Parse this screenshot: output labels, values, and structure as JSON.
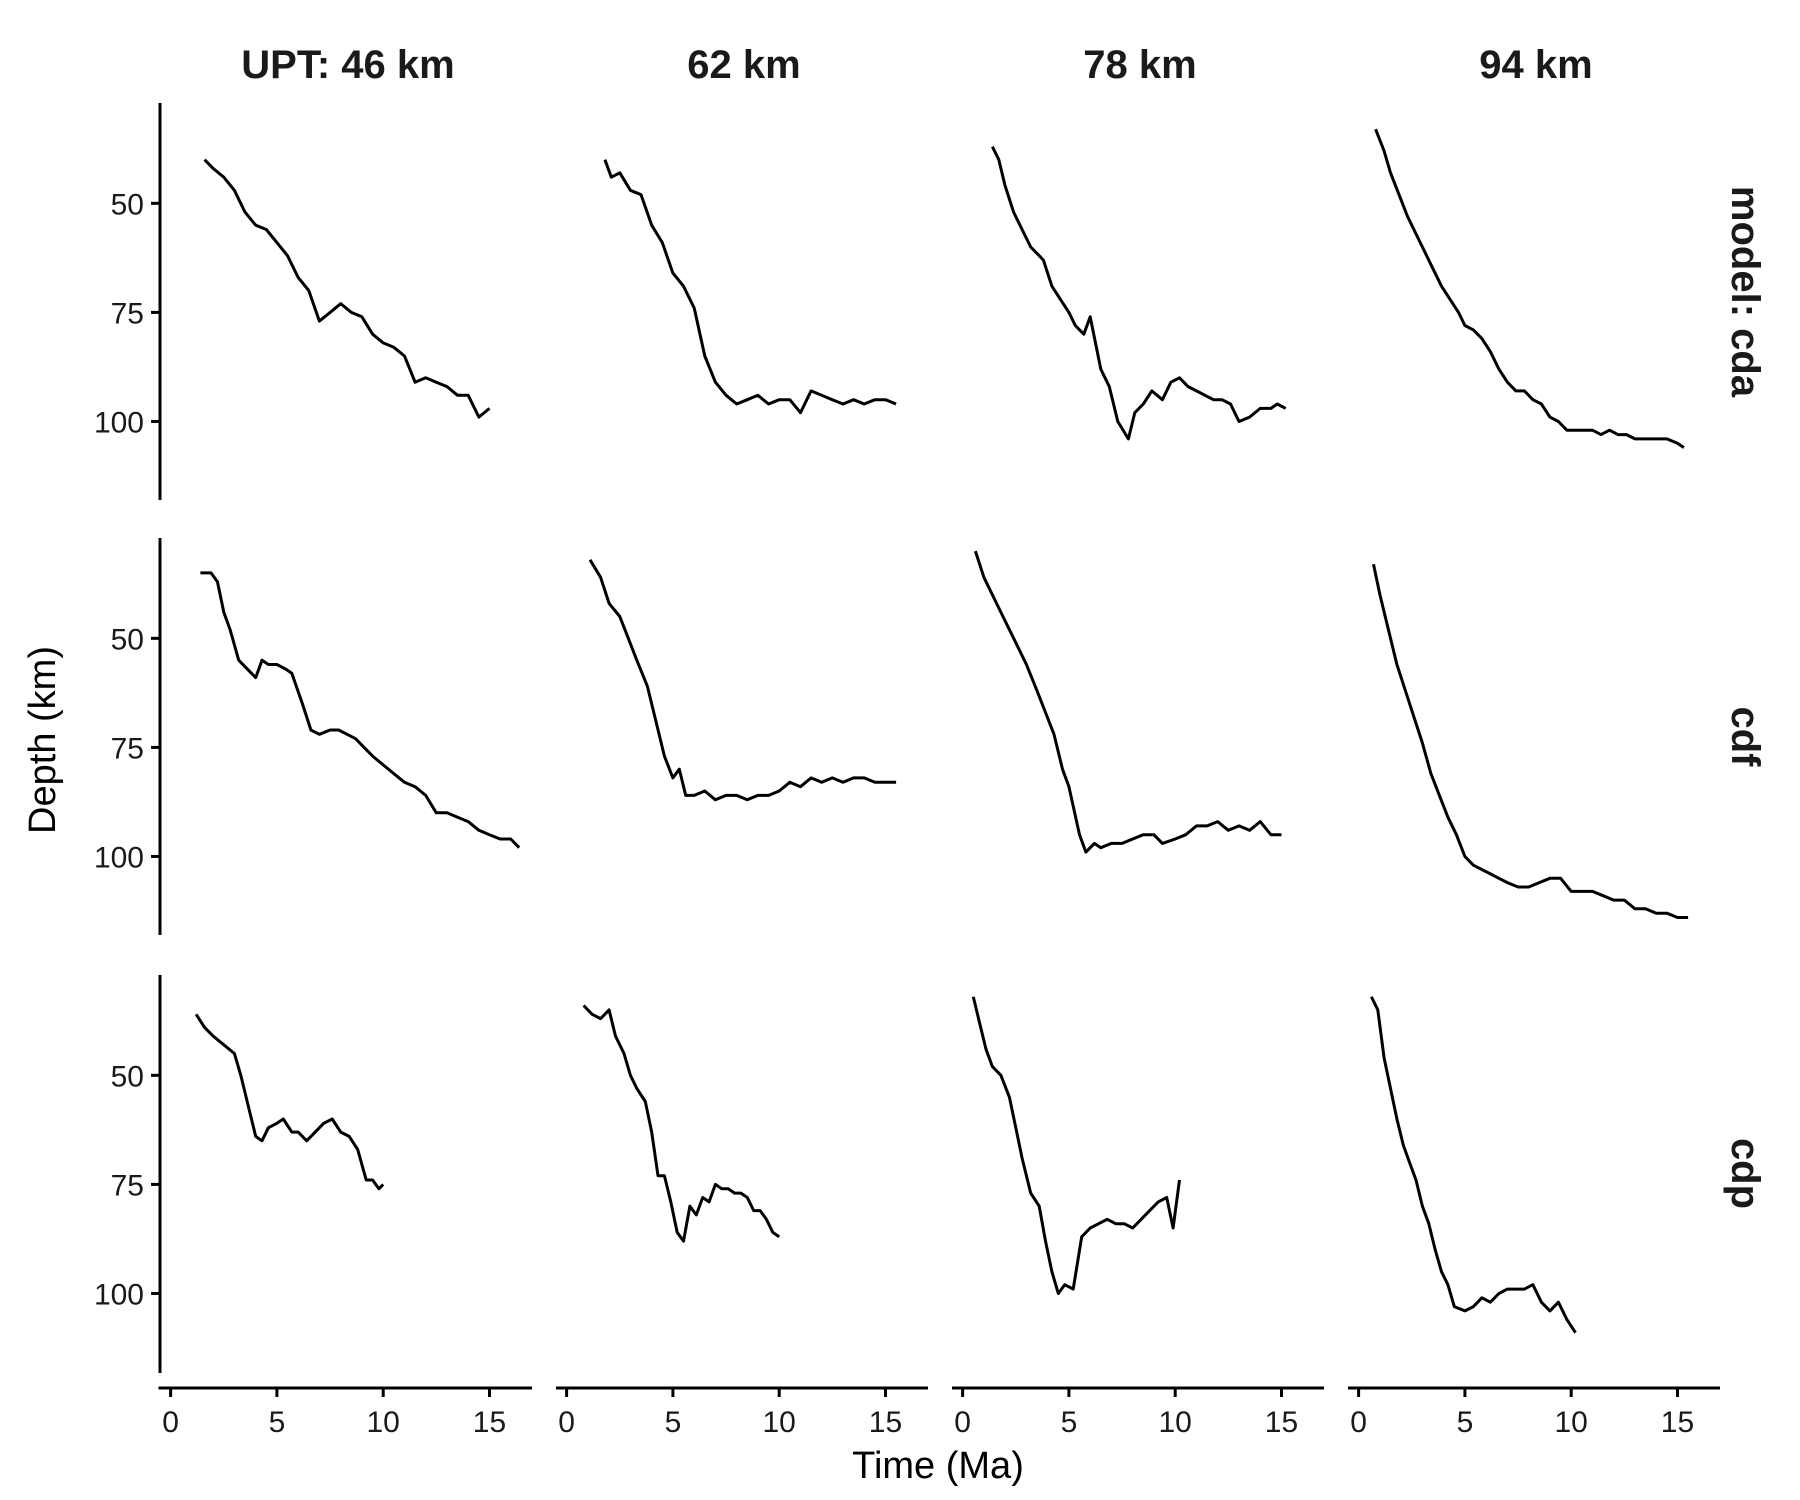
{
  "chart_data": {
    "type": "line",
    "xlabel": "Time (Ma)",
    "ylabel": "Depth (km)",
    "xlim": [
      -0.5,
      17.0
    ],
    "ylim": [
      118,
      27
    ],
    "y_reversed": true,
    "xticks": [
      0,
      5,
      10,
      15
    ],
    "yticks": [
      50,
      75,
      100
    ],
    "grid": false,
    "colors": {
      "line": "#000000",
      "axis": "#000000",
      "strip_text": "#1a1a1a"
    },
    "columns": [
      "UPT: 46 km",
      "62 km",
      "78 km",
      "94 km"
    ],
    "rows": [
      "model: cda",
      "cdf",
      "cdp"
    ],
    "panels": [
      {
        "row": "model: cda",
        "column": "UPT: 46 km",
        "x": [
          1.6,
          2.0,
          2.5,
          3.0,
          3.5,
          4.0,
          4.5,
          5.0,
          5.5,
          6.0,
          6.5,
          7.0,
          7.5,
          8.0,
          8.5,
          9.0,
          9.5,
          10.0,
          10.5,
          11.0,
          11.5,
          12.0,
          12.5,
          13.0,
          13.5,
          14.0,
          14.5,
          15.0
        ],
        "y": [
          40,
          42,
          44,
          47,
          52,
          55,
          56,
          59,
          62,
          67,
          70,
          77,
          75,
          73,
          75,
          76,
          80,
          82,
          83,
          85,
          91,
          90,
          91,
          92,
          94,
          94,
          99,
          97
        ]
      },
      {
        "row": "model: cda",
        "column": "62 km",
        "x": [
          1.8,
          2.1,
          2.5,
          3.0,
          3.5,
          4.0,
          4.5,
          5.0,
          5.5,
          6.0,
          6.5,
          7.0,
          7.5,
          8.0,
          8.5,
          9.0,
          9.5,
          10.0,
          10.5,
          11.0,
          11.5,
          12.0,
          12.5,
          13.0,
          13.5,
          14.0,
          14.5,
          15.0,
          15.5
        ],
        "y": [
          40,
          44,
          43,
          47,
          48,
          55,
          59,
          66,
          69,
          74,
          85,
          91,
          94,
          96,
          95,
          94,
          96,
          95,
          95,
          98,
          93,
          94,
          95,
          96,
          95,
          96,
          95,
          95,
          96
        ]
      },
      {
        "row": "model: cda",
        "column": "78 km",
        "x": [
          1.4,
          1.7,
          2.0,
          2.4,
          2.8,
          3.2,
          3.6,
          3.8,
          4.2,
          4.6,
          5.0,
          5.3,
          5.7,
          6.0,
          6.5,
          6.9,
          7.3,
          7.8,
          8.1,
          8.5,
          8.9,
          9.4,
          9.8,
          10.2,
          10.6,
          11.0,
          11.4,
          11.8,
          12.2,
          12.6,
          13.0,
          13.5,
          14.0,
          14.5,
          14.8,
          15.2
        ],
        "y": [
          37,
          40,
          46,
          52,
          56,
          60,
          62,
          63,
          69,
          72,
          75,
          78,
          80,
          76,
          88,
          92,
          100,
          104,
          98,
          96,
          93,
          95,
          91,
          90,
          92,
          93,
          94,
          95,
          95,
          96,
          100,
          99,
          97,
          97,
          96,
          97
        ]
      },
      {
        "row": "model: cda",
        "column": "94 km",
        "x": [
          0.8,
          1.2,
          1.5,
          1.9,
          2.3,
          2.7,
          3.1,
          3.5,
          3.9,
          4.3,
          4.7,
          5.0,
          5.4,
          5.8,
          6.2,
          6.6,
          7.0,
          7.4,
          7.8,
          8.2,
          8.6,
          9.0,
          9.4,
          9.8,
          10.2,
          10.6,
          11.0,
          11.4,
          11.8,
          12.2,
          12.6,
          13.0,
          13.5,
          14.0,
          14.5,
          15.0,
          15.3
        ],
        "y": [
          33,
          38,
          43,
          48,
          53,
          57,
          61,
          65,
          69,
          72,
          75,
          78,
          79,
          81,
          84,
          88,
          91,
          93,
          93,
          95,
          96,
          99,
          100,
          102,
          102,
          102,
          102,
          103,
          102,
          103,
          103,
          104,
          104,
          104,
          104,
          105,
          106
        ]
      },
      {
        "row": "cdf",
        "column": "UPT: 46 km",
        "x": [
          1.4,
          1.9,
          2.2,
          2.5,
          2.8,
          3.2,
          3.6,
          4.0,
          4.3,
          4.6,
          5.0,
          5.4,
          5.7,
          6.2,
          6.6,
          7.0,
          7.5,
          7.9,
          8.3,
          8.7,
          9.1,
          9.5,
          10.0,
          10.5,
          11.0,
          11.5,
          12.0,
          12.5,
          13.0,
          13.5,
          14.0,
          14.5,
          15.0,
          15.5,
          16.0,
          16.4
        ],
        "y": [
          35,
          35,
          37,
          44,
          48,
          55,
          57,
          59,
          55,
          56,
          56,
          57,
          58,
          65,
          71,
          72,
          71,
          71,
          72,
          73,
          75,
          77,
          79,
          81,
          83,
          84,
          86,
          90,
          90,
          91,
          92,
          94,
          95,
          96,
          96,
          98
        ]
      },
      {
        "row": "cdf",
        "column": "62 km",
        "x": [
          1.1,
          1.6,
          2.0,
          2.5,
          2.9,
          3.3,
          3.8,
          4.2,
          4.6,
          5.0,
          5.3,
          5.6,
          6.0,
          6.5,
          7.0,
          7.5,
          8.0,
          8.5,
          9.0,
          9.5,
          10.0,
          10.5,
          11.0,
          11.5,
          12.0,
          12.5,
          13.0,
          13.5,
          14.0,
          14.5,
          15.0,
          15.5
        ],
        "y": [
          32,
          36,
          42,
          45,
          50,
          55,
          61,
          69,
          77,
          82,
          80,
          86,
          86,
          85,
          87,
          86,
          86,
          87,
          86,
          86,
          85,
          83,
          84,
          82,
          83,
          82,
          83,
          82,
          82,
          83,
          83,
          83
        ]
      },
      {
        "row": "cdf",
        "column": "78 km",
        "x": [
          0.6,
          1.0,
          1.5,
          2.0,
          2.5,
          3.0,
          3.5,
          3.9,
          4.3,
          4.7,
          5.0,
          5.5,
          5.8,
          6.2,
          6.5,
          7.0,
          7.5,
          8.0,
          8.5,
          9.0,
          9.4,
          10.0,
          10.5,
          11.0,
          11.5,
          12.0,
          12.5,
          13.0,
          13.5,
          14.0,
          14.5,
          15.0
        ],
        "y": [
          30,
          36,
          41,
          46,
          51,
          56,
          62,
          67,
          72,
          80,
          84,
          95,
          99,
          97,
          98,
          97,
          97,
          96,
          95,
          95,
          97,
          96,
          95,
          93,
          93,
          92,
          94,
          93,
          94,
          92,
          95,
          95
        ]
      },
      {
        "row": "cdf",
        "column": "94 km",
        "x": [
          0.7,
          1.0,
          1.4,
          1.8,
          2.2,
          2.6,
          3.0,
          3.4,
          3.8,
          4.2,
          4.6,
          5.0,
          5.4,
          5.8,
          6.2,
          6.6,
          7.0,
          7.5,
          8.0,
          8.5,
          9.0,
          9.5,
          10.0,
          10.5,
          11.0,
          11.5,
          12.0,
          12.5,
          13.0,
          13.5,
          14.0,
          14.5,
          15.0,
          15.5
        ],
        "y": [
          33,
          40,
          48,
          56,
          62,
          68,
          74,
          81,
          86,
          91,
          95,
          100,
          102,
          103,
          104,
          105,
          106,
          107,
          107,
          106,
          105,
          105,
          108,
          108,
          108,
          109,
          110,
          110,
          112,
          112,
          113,
          113,
          114,
          114
        ]
      },
      {
        "row": "cdp",
        "column": "UPT: 46 km",
        "x": [
          1.2,
          1.6,
          2.0,
          2.5,
          3.0,
          3.3,
          3.7,
          4.0,
          4.3,
          4.6,
          5.0,
          5.3,
          5.7,
          6.0,
          6.4,
          6.8,
          7.2,
          7.6,
          8.0,
          8.4,
          8.8,
          9.2,
          9.5,
          9.8,
          10.0
        ],
        "y": [
          36,
          39,
          41,
          43,
          45,
          50,
          58,
          64,
          65,
          62,
          61,
          60,
          63,
          63,
          65,
          63,
          61,
          60,
          63,
          64,
          67,
          74,
          74,
          76,
          75
        ]
      },
      {
        "row": "cdp",
        "column": "62 km",
        "x": [
          0.8,
          1.2,
          1.6,
          2.0,
          2.3,
          2.7,
          3.0,
          3.3,
          3.7,
          4.0,
          4.3,
          4.6,
          4.9,
          5.2,
          5.5,
          5.8,
          6.1,
          6.4,
          6.7,
          7.0,
          7.3,
          7.6,
          7.9,
          8.2,
          8.5,
          8.8,
          9.1,
          9.4,
          9.7,
          10.0
        ],
        "y": [
          34,
          36,
          37,
          35,
          41,
          45,
          50,
          53,
          56,
          63,
          73,
          73,
          79,
          86,
          88,
          80,
          82,
          78,
          79,
          75,
          76,
          76,
          77,
          77,
          78,
          81,
          81,
          83,
          86,
          87
        ]
      },
      {
        "row": "cdp",
        "column": "78 km",
        "x": [
          0.5,
          0.8,
          1.1,
          1.4,
          1.8,
          2.2,
          2.5,
          2.8,
          3.2,
          3.6,
          3.9,
          4.2,
          4.5,
          4.8,
          5.2,
          5.6,
          6.0,
          6.4,
          6.8,
          7.2,
          7.6,
          8.0,
          8.4,
          8.8,
          9.2,
          9.6,
          9.9,
          10.2
        ],
        "y": [
          32,
          38,
          44,
          48,
          50,
          55,
          62,
          69,
          77,
          80,
          88,
          95,
          100,
          98,
          99,
          87,
          85,
          84,
          83,
          84,
          84,
          85,
          83,
          81,
          79,
          78,
          85,
          74
        ]
      },
      {
        "row": "cdp",
        "column": "94 km",
        "x": [
          0.6,
          0.9,
          1.2,
          1.5,
          1.8,
          2.1,
          2.4,
          2.7,
          3.0,
          3.3,
          3.6,
          3.9,
          4.2,
          4.5,
          5.0,
          5.4,
          5.8,
          6.2,
          6.6,
          7.0,
          7.4,
          7.8,
          8.2,
          8.6,
          9.0,
          9.4,
          9.8,
          10.2
        ],
        "y": [
          32,
          35,
          46,
          53,
          60,
          66,
          70,
          74,
          80,
          84,
          90,
          95,
          98,
          103,
          104,
          103,
          101,
          102,
          100,
          99,
          99,
          99,
          98,
          102,
          104,
          102,
          106,
          109
        ]
      }
    ]
  }
}
